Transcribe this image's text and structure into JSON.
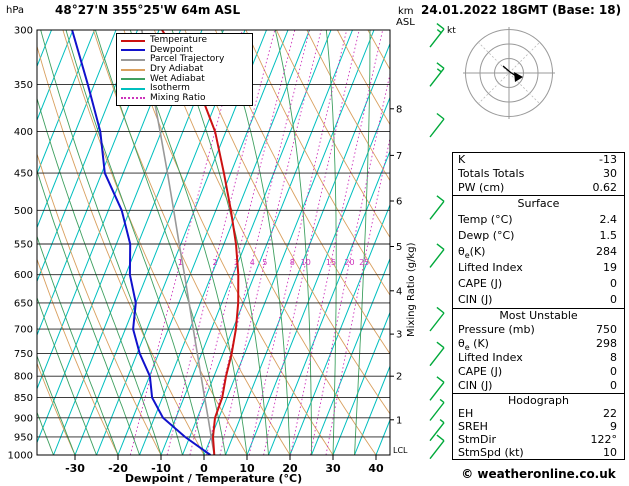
{
  "header": {
    "left_unit": "hPa",
    "station": "48°27'N 355°25'W 64m ASL",
    "right_title": "24.01.2022 18GMT (Base: 18)",
    "alt_axis_km": "km",
    "alt_axis_asl": "ASL"
  },
  "legend": {
    "items": [
      {
        "label": "Temperature",
        "color": "#cc1111",
        "style": "solid"
      },
      {
        "label": "Dewpoint",
        "color": "#1111cc",
        "style": "solid"
      },
      {
        "label": "Parcel Trajectory",
        "color": "#999999",
        "style": "solid"
      },
      {
        "label": "Dry Adiabat",
        "color": "#d9a05f",
        "style": "solid"
      },
      {
        "label": "Wet Adiabat",
        "color": "#3fa060",
        "style": "solid"
      },
      {
        "label": "Isotherm",
        "color": "#00bfbf",
        "style": "solid"
      },
      {
        "label": "Mixing Ratio",
        "color": "#cc33bb",
        "style": "dotted"
      }
    ]
  },
  "axes": {
    "xlabel": "Dewpoint / Temperature (°C)",
    "right_axis_label": "Mixing Ratio (g/kg)",
    "lcl_label": "LCL"
  },
  "hodograph": {
    "unit_label": "kt"
  },
  "panel": {
    "indices": {
      "rows": [
        {
          "label": "K",
          "value": "-13"
        },
        {
          "label": "Totals Totals",
          "value": "30"
        },
        {
          "label": "PW (cm)",
          "value": "0.62"
        }
      ]
    },
    "surface": {
      "title": "Surface",
      "rows": [
        {
          "label": "Temp (°C)",
          "value": "2.4"
        },
        {
          "label": "Dewp (°C)",
          "value": "1.5"
        },
        {
          "label_pre": "θ",
          "label_sub": "e",
          "label_post": "(K)",
          "value": "284"
        },
        {
          "label": "Lifted Index",
          "value": "19"
        },
        {
          "label": "CAPE (J)",
          "value": "0"
        },
        {
          "label": "CIN (J)",
          "value": "0"
        }
      ]
    },
    "most_unstable": {
      "title": "Most Unstable",
      "rows": [
        {
          "label": "Pressure (mb)",
          "value": "750"
        },
        {
          "label_pre": "θ",
          "label_sub": "e",
          "label_post": " (K)",
          "value": "298"
        },
        {
          "label": "Lifted Index",
          "value": "8"
        },
        {
          "label": "CAPE (J)",
          "value": "0"
        },
        {
          "label": "CIN (J)",
          "value": "0"
        }
      ]
    },
    "hodograph_stats": {
      "title": "Hodograph",
      "rows": [
        {
          "label": "EH",
          "value": "22"
        },
        {
          "label": "SREH",
          "value": "9"
        },
        {
          "label": "StmDir",
          "value": "122°"
        },
        {
          "label": "StmSpd (kt)",
          "value": "10"
        }
      ]
    }
  },
  "footer": {
    "copyright": "© weatheronline.co.uk"
  },
  "chart_data": {
    "type": "line",
    "title": "Skew-T log-P sounding 24.01.2022 18GMT",
    "pressure_range": [
      300,
      1000
    ],
    "pressure_ticks": [
      300,
      350,
      400,
      450,
      500,
      550,
      600,
      650,
      700,
      750,
      800,
      850,
      900,
      950,
      1000
    ],
    "temp_ticks_c": [
      -30,
      -20,
      -10,
      0,
      10,
      20,
      30,
      40
    ],
    "isotherm_step_c": 5,
    "mixing_ratio_lines_gkg": [
      1,
      2,
      3,
      4,
      5,
      8,
      10,
      15,
      20,
      25
    ],
    "km_axis": [
      {
        "km": 8,
        "p": 375
      },
      {
        "km": 7,
        "p": 428
      },
      {
        "km": 6,
        "p": 487
      },
      {
        "km": 5,
        "p": 554
      },
      {
        "km": 4,
        "p": 628
      },
      {
        "km": 3,
        "p": 710
      },
      {
        "km": 2,
        "p": 800
      },
      {
        "km": 1,
        "p": 905
      }
    ],
    "lcl_pressure": 990,
    "series": [
      {
        "name": "Temperature",
        "color": "#cc1111",
        "width": 2,
        "points": [
          [
            1000,
            2.4
          ],
          [
            950,
            0.4
          ],
          [
            900,
            -0.9
          ],
          [
            850,
            -1.1
          ],
          [
            800,
            -2.2
          ],
          [
            750,
            -3.0
          ],
          [
            700,
            -4.3
          ],
          [
            650,
            -6.2
          ],
          [
            600,
            -8.8
          ],
          [
            550,
            -12.2
          ],
          [
            500,
            -16.5
          ],
          [
            450,
            -21.6
          ],
          [
            400,
            -27.5
          ],
          [
            350,
            -36.1
          ],
          [
            300,
            -49.3
          ]
        ]
      },
      {
        "name": "Dewpoint",
        "color": "#1111cc",
        "width": 2,
        "points": [
          [
            1000,
            1.5
          ],
          [
            950,
            -6.1
          ],
          [
            900,
            -13.0
          ],
          [
            850,
            -17.4
          ],
          [
            800,
            -19.9
          ],
          [
            750,
            -24.4
          ],
          [
            700,
            -28.2
          ],
          [
            650,
            -30.0
          ],
          [
            600,
            -34.0
          ],
          [
            550,
            -36.8
          ],
          [
            500,
            -41.9
          ],
          [
            450,
            -49.3
          ],
          [
            400,
            -54.2
          ],
          [
            350,
            -61.5
          ],
          [
            300,
            -70.2
          ]
        ]
      },
      {
        "name": "Parcel Trajectory",
        "color": "#999999",
        "width": 1.6,
        "points": [
          [
            1000,
            2.4
          ],
          [
            950,
            0.0
          ],
          [
            900,
            -2.5
          ],
          [
            850,
            -5.2
          ],
          [
            800,
            -8.0
          ],
          [
            750,
            -11.0
          ],
          [
            700,
            -14.2
          ],
          [
            650,
            -17.6
          ],
          [
            600,
            -21.3
          ],
          [
            550,
            -25.4
          ],
          [
            500,
            -29.8
          ],
          [
            450,
            -34.7
          ],
          [
            400,
            -40.3
          ],
          [
            350,
            -46.7
          ],
          [
            300,
            -54.0
          ]
        ]
      }
    ],
    "wind_barbs_kt": [
      {
        "p": 307,
        "kt": 15
      },
      {
        "p": 343,
        "kt": 15
      },
      {
        "p": 396,
        "kt": 10
      },
      {
        "p": 500,
        "kt": 10
      },
      {
        "p": 573,
        "kt": 10
      },
      {
        "p": 686,
        "kt": 10
      },
      {
        "p": 757,
        "kt": 10
      },
      {
        "p": 835,
        "kt": 10
      },
      {
        "p": 884,
        "kt": 5
      },
      {
        "p": 936,
        "kt": 5
      },
      {
        "p": 985,
        "kt": 10
      }
    ],
    "background_colors": {
      "isotherm": "#00bfbf",
      "dry_adiabat": "#d9a05f",
      "wet_adiabat": "#3fa060",
      "mixing_ratio": "#cc33bb",
      "grid": "#222222",
      "wind_barb": "#00a93a"
    }
  }
}
